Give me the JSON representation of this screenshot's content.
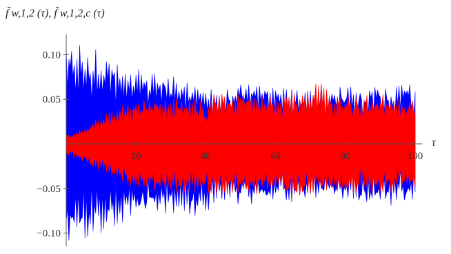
{
  "chart_data": {
    "type": "area",
    "title": "",
    "ylabel": "f̃ w,1,2 (τ), f̃ w,1,2,c (τ)",
    "xlabel": "τ",
    "xlim": [
      0,
      100
    ],
    "ylim": [
      -0.115,
      0.115
    ],
    "x_ticks": [
      20,
      40,
      60,
      80,
      100
    ],
    "x_tick_labels": [
      "20",
      "40",
      "60",
      "80",
      "100"
    ],
    "y_ticks": [
      0.1,
      0.05,
      -0.05,
      -0.1
    ],
    "y_tick_labels": [
      "0.10",
      "0.05",
      "−0.05",
      "−0.10"
    ],
    "grid": false,
    "legend": "none",
    "series": [
      {
        "color": "#0000ff",
        "x": [
          0,
          2,
          4,
          6,
          8,
          10,
          12,
          14,
          16,
          18,
          20,
          22,
          24,
          26,
          28,
          30,
          32,
          34,
          36,
          38,
          40,
          42,
          44,
          46,
          48,
          50,
          52,
          54,
          56,
          58,
          60,
          62,
          64,
          66,
          68,
          70,
          72,
          74,
          76,
          78,
          80,
          82,
          84,
          86,
          88,
          90,
          92,
          94,
          96,
          98,
          100
        ],
        "upper": [
          0.113,
          0.112,
          0.111,
          0.11,
          0.108,
          0.105,
          0.101,
          0.097,
          0.093,
          0.089,
          0.086,
          0.084,
          0.082,
          0.08,
          0.079,
          0.078,
          0.076,
          0.073,
          0.071,
          0.07,
          0.06,
          0.063,
          0.066,
          0.067,
          0.068,
          0.068,
          0.067,
          0.066,
          0.066,
          0.066,
          0.066,
          0.065,
          0.064,
          0.063,
          0.063,
          0.064,
          0.066,
          0.067,
          0.067,
          0.066,
          0.065,
          0.065,
          0.065,
          0.066,
          0.068,
          0.068,
          0.067,
          0.066,
          0.071,
          0.068,
          0.062
        ],
        "lower": [
          -0.112,
          -0.112,
          -0.11,
          -0.109,
          -0.108,
          -0.106,
          -0.103,
          -0.098,
          -0.094,
          -0.09,
          -0.087,
          -0.084,
          -0.082,
          -0.08,
          -0.079,
          -0.078,
          -0.077,
          -0.08,
          -0.083,
          -0.08,
          -0.076,
          -0.072,
          -0.068,
          -0.066,
          -0.067,
          -0.068,
          -0.069,
          -0.071,
          -0.07,
          -0.068,
          -0.066,
          -0.065,
          -0.066,
          -0.067,
          -0.066,
          -0.065,
          -0.064,
          -0.065,
          -0.065,
          -0.066,
          -0.066,
          -0.065,
          -0.064,
          -0.065,
          -0.066,
          -0.068,
          -0.072,
          -0.069,
          -0.067,
          -0.066,
          -0.062
        ]
      },
      {
        "color": "#ff0000",
        "x": [
          0,
          2,
          4,
          6,
          8,
          10,
          12,
          14,
          16,
          18,
          20,
          22,
          24,
          26,
          28,
          30,
          32,
          34,
          36,
          38,
          40,
          42,
          44,
          46,
          48,
          50,
          52,
          54,
          56,
          58,
          60,
          62,
          64,
          66,
          68,
          70,
          72,
          74,
          76,
          78,
          80,
          82,
          84,
          86,
          88,
          90,
          92,
          94,
          96,
          98,
          100
        ],
        "upper": [
          0.01,
          0.013,
          0.017,
          0.022,
          0.027,
          0.031,
          0.035,
          0.04,
          0.044,
          0.048,
          0.05,
          0.052,
          0.053,
          0.054,
          0.054,
          0.054,
          0.055,
          0.055,
          0.053,
          0.05,
          0.044,
          0.056,
          0.058,
          0.059,
          0.058,
          0.058,
          0.057,
          0.056,
          0.056,
          0.056,
          0.057,
          0.059,
          0.06,
          0.059,
          0.06,
          0.066,
          0.073,
          0.063,
          0.058,
          0.056,
          0.055,
          0.055,
          0.055,
          0.056,
          0.057,
          0.057,
          0.056,
          0.055,
          0.052,
          0.05,
          0.049
        ],
        "lower": [
          -0.012,
          -0.015,
          -0.019,
          -0.023,
          -0.027,
          -0.031,
          -0.035,
          -0.04,
          -0.045,
          -0.049,
          -0.052,
          -0.053,
          -0.055,
          -0.056,
          -0.056,
          -0.057,
          -0.057,
          -0.057,
          -0.056,
          -0.055,
          -0.056,
          -0.058,
          -0.059,
          -0.059,
          -0.058,
          -0.058,
          -0.058,
          -0.058,
          -0.059,
          -0.059,
          -0.058,
          -0.06,
          -0.061,
          -0.06,
          -0.059,
          -0.058,
          -0.057,
          -0.056,
          -0.057,
          -0.06,
          -0.061,
          -0.059,
          -0.057,
          -0.056,
          -0.056,
          -0.057,
          -0.057,
          -0.056,
          -0.056,
          -0.055,
          -0.055
        ]
      }
    ]
  }
}
